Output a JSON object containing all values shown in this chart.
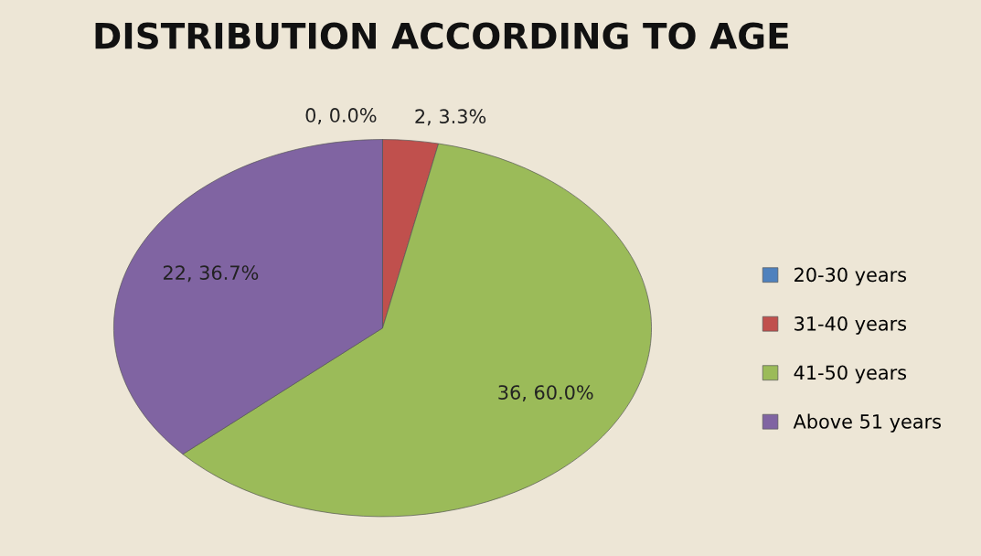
{
  "chart_data": {
    "type": "pie",
    "title": "DISTRIBUTION ACCORDING TO AGE",
    "categories": [
      "20-30 years",
      "31-40 years",
      "41-50 years",
      "Above 51 years"
    ],
    "values": [
      0,
      2,
      36,
      22
    ],
    "colors": [
      "#4f81bd",
      "#c0504d",
      "#9bbb59",
      "#8064a2"
    ],
    "value_labels": [
      "0, 0.0%",
      "2, 3.3%",
      "36, 60.0%",
      "22, 36.7%"
    ],
    "legend": "right"
  }
}
